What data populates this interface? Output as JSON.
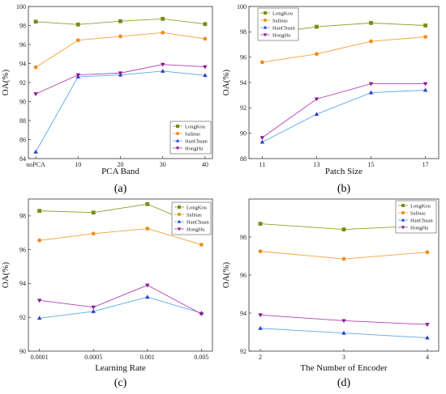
{
  "chart_data": [
    {
      "type": "line",
      "panel_label": "(a)",
      "xlabel": "PCA Band",
      "ylabel": "OA(%)",
      "categories": [
        "noPCA",
        "10",
        "20",
        "30",
        "40"
      ],
      "ylim": [
        84,
        100
      ],
      "yticks": [
        84,
        86,
        88,
        90,
        92,
        94,
        96,
        98,
        100
      ],
      "legend_position": "bottom-right",
      "series": [
        {
          "name": "LongKou",
          "values": [
            98.4,
            98.1,
            98.45,
            98.7,
            98.15
          ]
        },
        {
          "name": "Salinas",
          "values": [
            93.6,
            96.45,
            96.85,
            97.25,
            96.6
          ]
        },
        {
          "name": "HanChuan",
          "values": [
            84.7,
            92.6,
            92.8,
            93.2,
            92.75
          ]
        },
        {
          "name": "HongHu",
          "values": [
            90.8,
            92.8,
            93.0,
            93.9,
            93.65
          ]
        }
      ]
    },
    {
      "type": "line",
      "panel_label": "(b)",
      "xlabel": "Patch Size",
      "ylabel": "OA(%)",
      "categories": [
        "11",
        "13",
        "15",
        "17"
      ],
      "ylim": [
        88,
        100
      ],
      "yticks": [
        88,
        90,
        92,
        94,
        96,
        98,
        100
      ],
      "legend_position": "top-left",
      "series": [
        {
          "name": "LongKou",
          "values": [
            97.8,
            98.4,
            98.7,
            98.5
          ]
        },
        {
          "name": "Salinas",
          "values": [
            95.6,
            96.25,
            97.25,
            97.6
          ]
        },
        {
          "name": "HanChuan",
          "values": [
            89.3,
            91.5,
            93.2,
            93.4
          ]
        },
        {
          "name": "HongHu",
          "values": [
            89.65,
            92.7,
            93.9,
            93.9
          ]
        }
      ]
    },
    {
      "type": "line",
      "panel_label": "(c)",
      "xlabel": "Learning Rate",
      "ylabel": "OA(%)",
      "categories": [
        "0.0001",
        "0.0005",
        "0.001",
        "0.005"
      ],
      "ylim": [
        90,
        99
      ],
      "yticks": [
        90,
        92,
        94,
        96,
        98
      ],
      "legend_position": "top-right",
      "series": [
        {
          "name": "LongKou",
          "values": [
            98.3,
            98.2,
            98.7,
            97.35
          ]
        },
        {
          "name": "Salinas",
          "values": [
            96.55,
            96.95,
            97.25,
            96.3
          ]
        },
        {
          "name": "HanChuan",
          "values": [
            91.95,
            92.35,
            93.2,
            92.25
          ]
        },
        {
          "name": "HongHu",
          "values": [
            93.0,
            92.6,
            93.9,
            92.2
          ]
        }
      ]
    },
    {
      "type": "line",
      "panel_label": "(d)",
      "xlabel": "The Number of Encoder",
      "ylabel": "OA(%)",
      "categories": [
        "2",
        "3",
        "4"
      ],
      "ylim": [
        92,
        100
      ],
      "yticks": [
        92,
        94,
        96,
        98
      ],
      "legend_position": "top-right",
      "series": [
        {
          "name": "LongKou",
          "values": [
            98.7,
            98.4,
            98.6
          ]
        },
        {
          "name": "Salinas",
          "values": [
            97.25,
            96.85,
            97.2
          ]
        },
        {
          "name": "HanChuan",
          "values": [
            93.2,
            92.95,
            92.7
          ]
        },
        {
          "name": "HongHu",
          "values": [
            93.9,
            93.6,
            93.4
          ]
        }
      ]
    }
  ],
  "series_style": [
    {
      "name": "LongKou",
      "color": "#8da02e",
      "marker": "square"
    },
    {
      "name": "Salinas",
      "color": "#f0a23a",
      "marker": "circle"
    },
    {
      "name": "HanChuan",
      "color": "#5aa9e6",
      "marker": "triangle-up"
    },
    {
      "name": "HongHu",
      "color": "#b43fb0",
      "marker": "triangle-down"
    }
  ],
  "marker_colors": [
    "#7a8a1c",
    "#f08c1e",
    "#2a3fd1",
    "#8b1a8b"
  ]
}
